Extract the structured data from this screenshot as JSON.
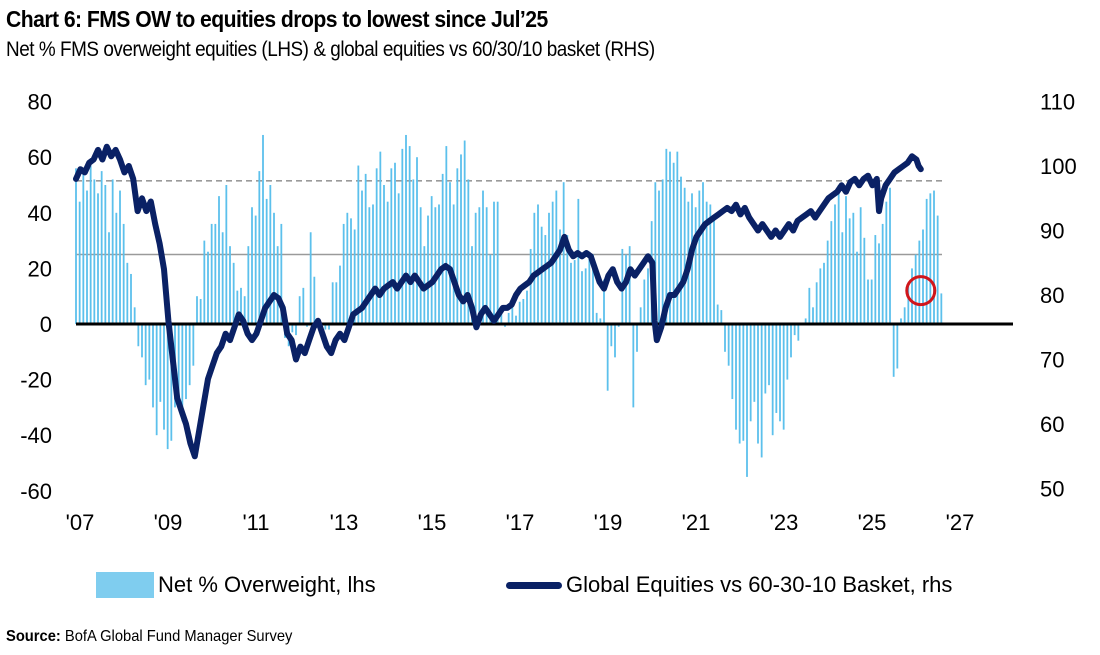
{
  "header": {
    "title": "Chart 6: FMS OW to equities drops to lowest since Jul’25",
    "subtitle": "Net % FMS overweight equities (LHS) & global equities vs 60/30/10 basket (RHS)"
  },
  "footer": {
    "source_label": "Source:",
    "source_text": "BofA Global Fund Manager Survey"
  },
  "colors": {
    "bars": "#5cc0ec",
    "line": "#0a2165",
    "zero_line": "#000000",
    "ref_line": "#9a9a9a",
    "highlight": "#d0161b"
  },
  "chart_data": {
    "type": "bar+line",
    "title": "Chart 6: FMS OW to equities drops to lowest since Jul’25",
    "subtitle": "Net % FMS overweight equities (LHS) & global equities vs 60/30/10 basket (RHS)",
    "x_ticks": [
      "'07",
      "'09",
      "'11",
      "'13",
      "'15",
      "'17",
      "'19",
      "'21",
      "'23",
      "'25",
      "'27"
    ],
    "x_range": [
      2007,
      2028
    ],
    "y_left": {
      "ticks": [
        "80",
        "60",
        "40",
        "20",
        "0",
        "-20",
        "-40",
        "-60"
      ],
      "range": [
        -60,
        80
      ]
    },
    "y_right": {
      "ticks": [
        "110",
        "100",
        "90",
        "80",
        "70",
        "60",
        "50"
      ],
      "range": [
        50,
        110
      ]
    },
    "reference_lines": [
      {
        "axis": "left",
        "value": 0,
        "style": "solid-black"
      },
      {
        "axis": "left",
        "value": 25,
        "style": "solid-gray"
      },
      {
        "axis": "left",
        "value": 51.5,
        "style": "dashed-gray"
      }
    ],
    "highlight": {
      "type": "circle",
      "x": 2026.2,
      "y_left": 12,
      "note": "latest reading"
    },
    "legend": [
      "Net % Overweight, lhs",
      "Global Equities vs 60-30-10 Basket, rhs"
    ],
    "legend_position": "bottom",
    "series": [
      {
        "name": "Net % Overweight, lhs",
        "axis": "left",
        "type": "bar",
        "start": 2007.0,
        "step_months": 1,
        "values": [
          56,
          44,
          55,
          48,
          57,
          52,
          47,
          55,
          50,
          33,
          52,
          40,
          48,
          36,
          22,
          18,
          6,
          -8,
          -12,
          -22,
          -20,
          -30,
          -40,
          -28,
          -38,
          -45,
          -42,
          -30,
          -25,
          -35,
          -27,
          -22,
          -15,
          10,
          9,
          30,
          26,
          36,
          36,
          46,
          33,
          50,
          28,
          22,
          12,
          13,
          10,
          28,
          42,
          39,
          55,
          68,
          45,
          50,
          40,
          28,
          36,
          -5,
          -8,
          -3,
          -4,
          10,
          13,
          -1,
          33,
          17,
          0,
          -3,
          -2,
          -2,
          15,
          15,
          21,
          36,
          40,
          38,
          34,
          57,
          48,
          54,
          42,
          43,
          56,
          62,
          50,
          44,
          56,
          58,
          47,
          63,
          68,
          64,
          52,
          60,
          42,
          28,
          39,
          46,
          42,
          43,
          54,
          64,
          51,
          43,
          56,
          61,
          66,
          52,
          28,
          40,
          42,
          48,
          42,
          25,
          44,
          44,
          6,
          -1,
          4,
          7,
          3,
          8,
          9,
          12,
          27,
          40,
          43,
          35,
          32,
          40,
          44,
          48,
          34,
          51,
          32,
          22,
          23,
          45,
          19,
          20,
          26,
          25,
          4,
          2,
          16,
          -24,
          -8,
          -12,
          -1,
          27,
          25,
          28,
          -30,
          -10,
          6,
          16,
          20,
          37,
          51,
          48,
          52,
          63,
          62,
          58,
          62,
          53,
          49,
          44,
          47,
          42,
          48,
          51,
          44,
          43,
          38,
          7,
          5,
          -10,
          -15,
          -27,
          -38,
          -43,
          -42,
          -55,
          -35,
          -28,
          -43,
          -48,
          -25,
          -22,
          -40,
          -32,
          -35,
          -38,
          -20,
          -12,
          -4,
          -6,
          0,
          2,
          13,
          6,
          15,
          20,
          22,
          30,
          37,
          43,
          50,
          33,
          46,
          38,
          40,
          26,
          42,
          31,
          16,
          16,
          32,
          29,
          36,
          44,
          49,
          -19,
          -16,
          2,
          6,
          14,
          20,
          25,
          30,
          34,
          45,
          47,
          48,
          39,
          11
        ]
      },
      {
        "name": "Global Equities vs 60-30-10 Basket, rhs",
        "axis": "right",
        "type": "line",
        "points": [
          [
            2007.0,
            98
          ],
          [
            2007.1,
            99.5
          ],
          [
            2007.2,
            99
          ],
          [
            2007.3,
            100.5
          ],
          [
            2007.4,
            101
          ],
          [
            2007.5,
            102.5
          ],
          [
            2007.6,
            101
          ],
          [
            2007.7,
            103
          ],
          [
            2007.8,
            101.5
          ],
          [
            2007.9,
            102.5
          ],
          [
            2008.0,
            101
          ],
          [
            2008.1,
            99
          ],
          [
            2008.2,
            100
          ],
          [
            2008.3,
            98
          ],
          [
            2008.4,
            93
          ],
          [
            2008.5,
            95
          ],
          [
            2008.6,
            93
          ],
          [
            2008.7,
            94.5
          ],
          [
            2008.8,
            91
          ],
          [
            2008.9,
            88
          ],
          [
            2009.0,
            84
          ],
          [
            2009.1,
            76
          ],
          [
            2009.2,
            70
          ],
          [
            2009.3,
            64
          ],
          [
            2009.4,
            62
          ],
          [
            2009.5,
            60
          ],
          [
            2009.6,
            57
          ],
          [
            2009.7,
            55
          ],
          [
            2009.8,
            59
          ],
          [
            2009.9,
            63
          ],
          [
            2010.0,
            67
          ],
          [
            2010.1,
            69
          ],
          [
            2010.2,
            71
          ],
          [
            2010.3,
            72
          ],
          [
            2010.4,
            74
          ],
          [
            2010.5,
            73
          ],
          [
            2010.6,
            75
          ],
          [
            2010.7,
            77
          ],
          [
            2010.8,
            76
          ],
          [
            2010.9,
            74
          ],
          [
            2011.0,
            73
          ],
          [
            2011.1,
            74
          ],
          [
            2011.2,
            76
          ],
          [
            2011.3,
            78
          ],
          [
            2011.4,
            79
          ],
          [
            2011.5,
            80
          ],
          [
            2011.6,
            79.5
          ],
          [
            2011.7,
            78
          ],
          [
            2011.8,
            74
          ],
          [
            2011.9,
            73
          ],
          [
            2012.0,
            70
          ],
          [
            2012.1,
            72
          ],
          [
            2012.2,
            71
          ],
          [
            2012.3,
            73
          ],
          [
            2012.4,
            75
          ],
          [
            2012.5,
            76
          ],
          [
            2012.6,
            74
          ],
          [
            2012.7,
            72
          ],
          [
            2012.8,
            71
          ],
          [
            2012.9,
            73
          ],
          [
            2013.0,
            74
          ],
          [
            2013.1,
            73
          ],
          [
            2013.2,
            75
          ],
          [
            2013.3,
            77
          ],
          [
            2013.4,
            77.5
          ],
          [
            2013.5,
            78
          ],
          [
            2013.6,
            79
          ],
          [
            2013.7,
            80
          ],
          [
            2013.8,
            81
          ],
          [
            2013.9,
            80
          ],
          [
            2014.0,
            81
          ],
          [
            2014.1,
            81.5
          ],
          [
            2014.2,
            82
          ],
          [
            2014.3,
            81
          ],
          [
            2014.4,
            82
          ],
          [
            2014.5,
            83
          ],
          [
            2014.6,
            82
          ],
          [
            2014.7,
            83
          ],
          [
            2014.8,
            82
          ],
          [
            2014.9,
            81
          ],
          [
            2015.0,
            81.5
          ],
          [
            2015.1,
            82
          ],
          [
            2015.2,
            83
          ],
          [
            2015.3,
            84
          ],
          [
            2015.4,
            84.5
          ],
          [
            2015.5,
            84
          ],
          [
            2015.6,
            82
          ],
          [
            2015.7,
            80
          ],
          [
            2015.8,
            79
          ],
          [
            2015.9,
            80
          ],
          [
            2016.0,
            78
          ],
          [
            2016.1,
            75
          ],
          [
            2016.2,
            77
          ],
          [
            2016.3,
            78
          ],
          [
            2016.4,
            77
          ],
          [
            2016.5,
            76
          ],
          [
            2016.6,
            77
          ],
          [
            2016.7,
            78
          ],
          [
            2016.8,
            78
          ],
          [
            2016.9,
            78.5
          ],
          [
            2017.0,
            80
          ],
          [
            2017.1,
            81
          ],
          [
            2017.2,
            81.5
          ],
          [
            2017.3,
            82
          ],
          [
            2017.4,
            83
          ],
          [
            2017.5,
            83.5
          ],
          [
            2017.6,
            84
          ],
          [
            2017.7,
            84.5
          ],
          [
            2017.8,
            85
          ],
          [
            2017.9,
            86
          ],
          [
            2018.0,
            87
          ],
          [
            2018.1,
            89
          ],
          [
            2018.2,
            87
          ],
          [
            2018.3,
            86
          ],
          [
            2018.4,
            86.5
          ],
          [
            2018.5,
            86
          ],
          [
            2018.6,
            86.5
          ],
          [
            2018.7,
            86
          ],
          [
            2018.8,
            84
          ],
          [
            2018.9,
            82
          ],
          [
            2019.0,
            81
          ],
          [
            2019.1,
            83
          ],
          [
            2019.2,
            84
          ],
          [
            2019.3,
            82
          ],
          [
            2019.4,
            81
          ],
          [
            2019.5,
            82
          ],
          [
            2019.6,
            84
          ],
          [
            2019.7,
            83
          ],
          [
            2019.8,
            84
          ],
          [
            2019.9,
            85
          ],
          [
            2020.0,
            86
          ],
          [
            2020.1,
            85
          ],
          [
            2020.15,
            76
          ],
          [
            2020.2,
            73
          ],
          [
            2020.3,
            75
          ],
          [
            2020.4,
            78
          ],
          [
            2020.5,
            80
          ],
          [
            2020.6,
            80
          ],
          [
            2020.7,
            81
          ],
          [
            2020.8,
            82
          ],
          [
            2020.9,
            84
          ],
          [
            2021.0,
            87
          ],
          [
            2021.1,
            89
          ],
          [
            2021.2,
            90
          ],
          [
            2021.3,
            91
          ],
          [
            2021.4,
            91.5
          ],
          [
            2021.5,
            92
          ],
          [
            2021.6,
            92.5
          ],
          [
            2021.7,
            93
          ],
          [
            2021.8,
            93.5
          ],
          [
            2021.9,
            93
          ],
          [
            2022.0,
            94
          ],
          [
            2022.1,
            92.5
          ],
          [
            2022.2,
            93.5
          ],
          [
            2022.3,
            92
          ],
          [
            2022.4,
            91
          ],
          [
            2022.5,
            90
          ],
          [
            2022.6,
            91
          ],
          [
            2022.7,
            90
          ],
          [
            2022.8,
            89
          ],
          [
            2022.9,
            90
          ],
          [
            2023.0,
            89
          ],
          [
            2023.1,
            90
          ],
          [
            2023.2,
            91
          ],
          [
            2023.3,
            90
          ],
          [
            2023.4,
            91.5
          ],
          [
            2023.5,
            92
          ],
          [
            2023.6,
            92.5
          ],
          [
            2023.7,
            93
          ],
          [
            2023.8,
            92
          ],
          [
            2023.9,
            93
          ],
          [
            2024.0,
            94
          ],
          [
            2024.1,
            95
          ],
          [
            2024.2,
            95.5
          ],
          [
            2024.3,
            96
          ],
          [
            2024.4,
            97
          ],
          [
            2024.5,
            96
          ],
          [
            2024.6,
            97.5
          ],
          [
            2024.7,
            98
          ],
          [
            2024.8,
            97
          ],
          [
            2024.9,
            98
          ],
          [
            2025.0,
            98.5
          ],
          [
            2025.1,
            97
          ],
          [
            2025.2,
            98
          ],
          [
            2025.25,
            93
          ],
          [
            2025.3,
            95
          ],
          [
            2025.4,
            97
          ],
          [
            2025.5,
            98
          ],
          [
            2025.6,
            99
          ],
          [
            2025.7,
            99.5
          ],
          [
            2025.8,
            100
          ],
          [
            2025.9,
            100.5
          ],
          [
            2026.0,
            101.5
          ],
          [
            2026.1,
            101
          ],
          [
            2026.15,
            100
          ],
          [
            2026.2,
            99.5
          ]
        ]
      }
    ]
  }
}
